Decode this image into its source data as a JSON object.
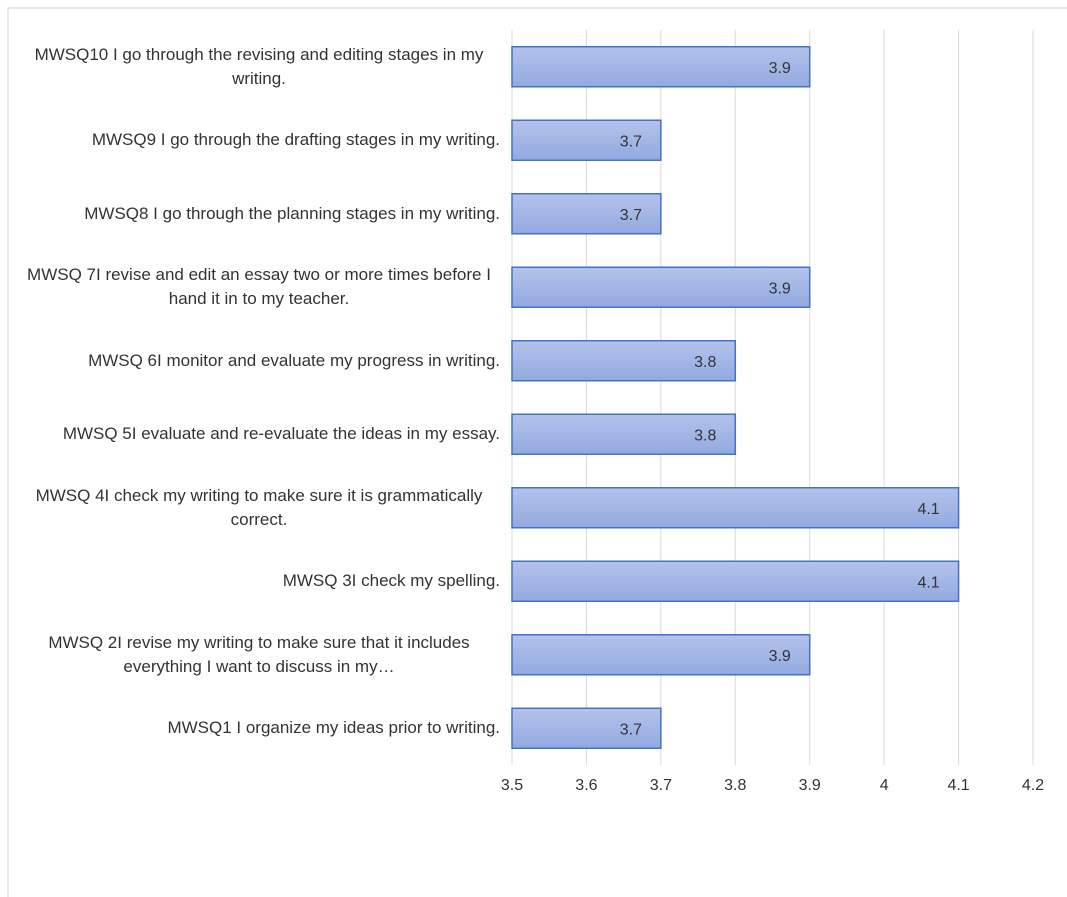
{
  "chart_data": {
    "type": "barh",
    "categories": [
      "MWSQ10 I go through the revising and editing stages in my writing.",
      "MWSQ9 I go through the drafting stages in my writing.",
      "MWSQ8 I go through the planning stages in my writing.",
      "MWSQ 7I revise and edit an essay two or more times before I hand it in to my teacher.",
      "MWSQ 6I monitor and evaluate my progress in writing.",
      "MWSQ 5I evaluate and re-evaluate the ideas in my essay.",
      "MWSQ 4I check my writing to make sure it is grammatically correct.",
      "MWSQ 3I check my spelling.",
      "MWSQ 2I revise my writing to make sure that it includes everything I want to discuss in my…",
      "MWSQ1 I organize my ideas prior to writing."
    ],
    "values": [
      3.9,
      3.7,
      3.7,
      3.9,
      3.8,
      3.8,
      4.1,
      4.1,
      3.9,
      3.7
    ],
    "color": "#a4b6e6",
    "xlim": [
      3.5,
      4.2
    ],
    "xticks": [
      3.5,
      3.6,
      3.7,
      3.8,
      3.9,
      4,
      4.1,
      4.2
    ],
    "grid": true
  }
}
